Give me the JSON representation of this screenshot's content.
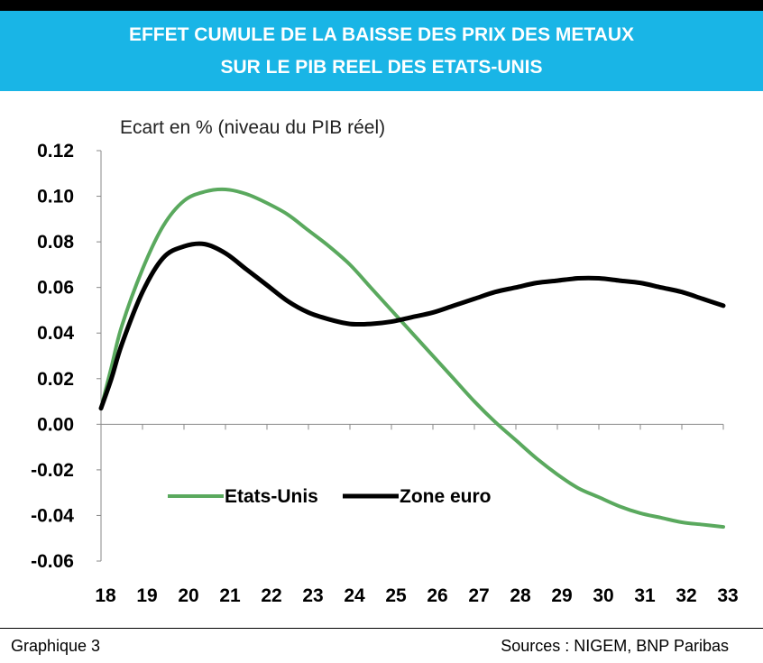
{
  "header": {
    "title_line1": "EFFET CUMULE DE LA BAISSE DES PRIX DES METAUX",
    "title_line2": "SUR LE PIB REEL DES ETATS-UNIS"
  },
  "footer": {
    "left": "Graphique 3",
    "right": "Sources : NIGEM, BNP Paribas"
  },
  "colors": {
    "banner": "#19b5e6",
    "etats_unis": "#5aa95e",
    "zone_euro": "#000000"
  },
  "chart_data": {
    "type": "line",
    "ylabel": "Ecart en % (niveau du PIB réel)",
    "xlabel": "",
    "ylim": [
      -0.06,
      0.12
    ],
    "xlim": [
      18,
      33
    ],
    "yticks": [
      "0.12",
      "0.10",
      "0.08",
      "0.06",
      "0.04",
      "0.02",
      "0.00",
      "-0.02",
      "-0.04",
      "-0.06"
    ],
    "xticks": [
      "18",
      "19",
      "20",
      "21",
      "22",
      "23",
      "24",
      "25",
      "26",
      "27",
      "28",
      "29",
      "30",
      "31",
      "32",
      "33"
    ],
    "grid": false,
    "legend_position": "bottom-center",
    "x": [
      18,
      18.25,
      18.5,
      19,
      19.5,
      20,
      20.5,
      21,
      21.5,
      22,
      22.5,
      23,
      23.5,
      24,
      24.5,
      25,
      25.5,
      26,
      26.5,
      27,
      27.5,
      28,
      28.5,
      29,
      29.5,
      30,
      30.5,
      31,
      31.5,
      32,
      32.5,
      33
    ],
    "series": [
      {
        "name": "Etats-Unis",
        "color": "#5aa95e",
        "values": [
          0.007,
          0.025,
          0.043,
          0.068,
          0.087,
          0.098,
          0.102,
          0.103,
          0.101,
          0.097,
          0.092,
          0.085,
          0.078,
          0.07,
          0.06,
          0.05,
          0.04,
          0.03,
          0.02,
          0.01,
          0.001,
          -0.007,
          -0.015,
          -0.022,
          -0.028,
          -0.032,
          -0.036,
          -0.039,
          -0.041,
          -0.043,
          -0.044,
          -0.045
        ]
      },
      {
        "name": "Zone euro",
        "color": "#000000",
        "values": [
          0.007,
          0.02,
          0.035,
          0.058,
          0.073,
          0.078,
          0.079,
          0.075,
          0.068,
          0.061,
          0.054,
          0.049,
          0.046,
          0.044,
          0.044,
          0.045,
          0.047,
          0.049,
          0.052,
          0.055,
          0.058,
          0.06,
          0.062,
          0.063,
          0.064,
          0.064,
          0.063,
          0.062,
          0.06,
          0.058,
          0.055,
          0.052
        ]
      }
    ]
  }
}
